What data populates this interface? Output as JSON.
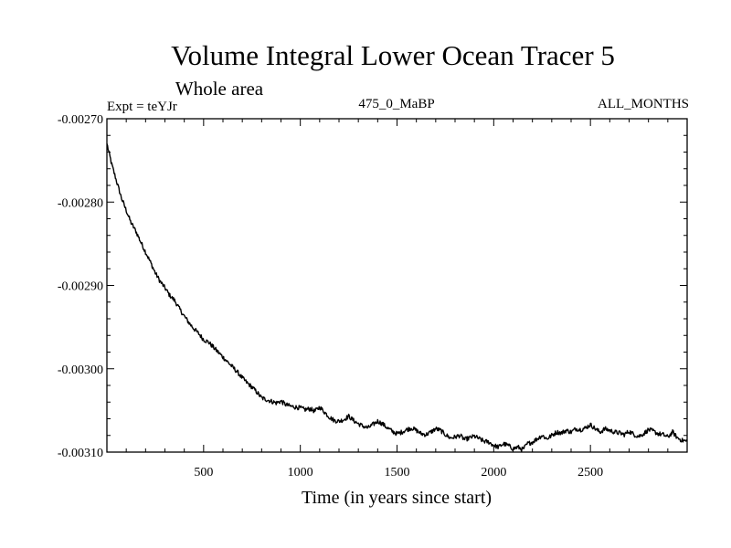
{
  "chart_data": {
    "type": "line",
    "title": "Volume Integral Lower Ocean Tracer 5",
    "subtitle": "Whole area",
    "expt_label": "Expt = teYJr",
    "period_label": "475_0_MaBP",
    "months_label": "ALL_MONTHS",
    "xlabel": "Time (in years since start)",
    "ylabel": "",
    "xlim": [
      0,
      3000
    ],
    "ylim": [
      -0.0031,
      -0.0027
    ],
    "x_ticks": [
      500,
      1000,
      1500,
      2000,
      2500
    ],
    "x_tick_labels": [
      "500",
      "1000",
      "1500",
      "2000",
      "2500"
    ],
    "y_ticks": [
      -0.0027,
      -0.0028,
      -0.0029,
      -0.003,
      -0.0031
    ],
    "y_tick_labels": [
      "-0.00270",
      "-0.00280",
      "-0.00290",
      "-0.00300",
      "-0.00310"
    ],
    "grid": false,
    "series": [
      {
        "name": "Volume Integral Lower Ocean Tracer 5",
        "x": [
          0,
          25,
          50,
          75,
          100,
          125,
          150,
          175,
          200,
          225,
          250,
          275,
          300,
          325,
          350,
          375,
          400,
          425,
          450,
          475,
          500,
          525,
          550,
          575,
          600,
          625,
          650,
          675,
          700,
          725,
          750,
          775,
          800,
          825,
          850,
          875,
          900,
          925,
          950,
          975,
          1000,
          1025,
          1050,
          1075,
          1100,
          1125,
          1150,
          1175,
          1200,
          1225,
          1250,
          1275,
          1300,
          1325,
          1350,
          1375,
          1400,
          1425,
          1450,
          1475,
          1500,
          1525,
          1550,
          1575,
          1600,
          1625,
          1650,
          1675,
          1700,
          1725,
          1750,
          1775,
          1800,
          1825,
          1850,
          1875,
          1900,
          1925,
          1950,
          1975,
          2000,
          2025,
          2050,
          2075,
          2100,
          2125,
          2150,
          2175,
          2200,
          2225,
          2250,
          2275,
          2300,
          2325,
          2350,
          2375,
          2400,
          2425,
          2450,
          2475,
          2500,
          2525,
          2550,
          2575,
          2600,
          2625,
          2650,
          2675,
          2700,
          2725,
          2750,
          2775,
          2800,
          2825,
          2850,
          2875,
          2900,
          2925,
          2950,
          2975,
          3000
        ],
        "y": [
          -0.00273,
          -0.002755,
          -0.002775,
          -0.002795,
          -0.00281,
          -0.002825,
          -0.002835,
          -0.002848,
          -0.00286,
          -0.002872,
          -0.002885,
          -0.002895,
          -0.002903,
          -0.002912,
          -0.002918,
          -0.002928,
          -0.002937,
          -0.002945,
          -0.002952,
          -0.002958,
          -0.002965,
          -0.002968,
          -0.002974,
          -0.00298,
          -0.002986,
          -0.002992,
          -0.002998,
          -0.003004,
          -0.003011,
          -0.003017,
          -0.003022,
          -0.003028,
          -0.003035,
          -0.003037,
          -0.003039,
          -0.003041,
          -0.003039,
          -0.003043,
          -0.003045,
          -0.003046,
          -0.003047,
          -0.003049,
          -0.003048,
          -0.003051,
          -0.003046,
          -0.003052,
          -0.003058,
          -0.003062,
          -0.003063,
          -0.003061,
          -0.003057,
          -0.003062,
          -0.003066,
          -0.003069,
          -0.003071,
          -0.003067,
          -0.003063,
          -0.003066,
          -0.003071,
          -0.003075,
          -0.003078,
          -0.003076,
          -0.003073,
          -0.003071,
          -0.003074,
          -0.003078,
          -0.003079,
          -0.003076,
          -0.003072,
          -0.003074,
          -0.003079,
          -0.003083,
          -0.003082,
          -0.00308,
          -0.003085,
          -0.003083,
          -0.003081,
          -0.003084,
          -0.003087,
          -0.003088,
          -0.003092,
          -0.003094,
          -0.00309,
          -0.003092,
          -0.003096,
          -0.003094,
          -0.003097,
          -0.00309,
          -0.003088,
          -0.003084,
          -0.00308,
          -0.003084,
          -0.00308,
          -0.003076,
          -0.003077,
          -0.003074,
          -0.003076,
          -0.003072,
          -0.003073,
          -0.003071,
          -0.003067,
          -0.003072,
          -0.003076,
          -0.003072,
          -0.003074,
          -0.003076,
          -0.003077,
          -0.003079,
          -0.003075,
          -0.003079,
          -0.003081,
          -0.003078,
          -0.003073,
          -0.003075,
          -0.003078,
          -0.003079,
          -0.003082,
          -0.003076,
          -0.003083,
          -0.003086,
          -0.003087
        ]
      }
    ]
  }
}
